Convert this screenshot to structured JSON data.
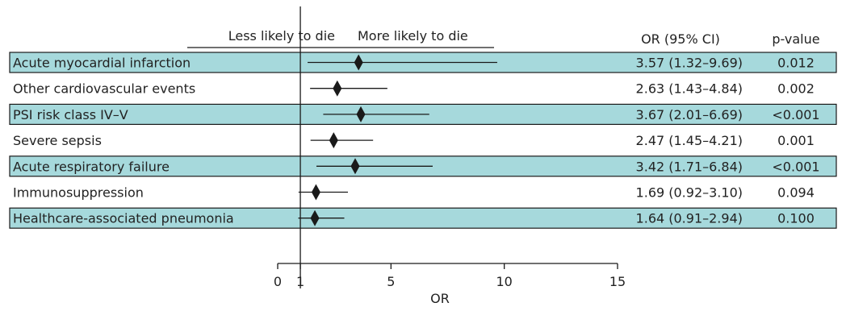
{
  "chart_data": {
    "type": "forest",
    "xlabel": "OR",
    "direction_left": "Less likely to die",
    "direction_right": "More likely to die",
    "col_or_header": "OR (95% CI)",
    "col_p_header": "p-value",
    "xlim": [
      0,
      15
    ],
    "reference_line": 1,
    "xticks": [
      0,
      1,
      5,
      10,
      15
    ],
    "xtick_labels": [
      "0",
      "1",
      "5",
      "10",
      "15"
    ],
    "rows": [
      {
        "label": "Acute myocardial infarction",
        "or": 3.57,
        "ci_low": 1.32,
        "ci_high": 9.69,
        "or_text": "3.57 (1.32–9.69)",
        "p": "0.012",
        "shaded": true
      },
      {
        "label": "Other cardiovascular events",
        "or": 2.63,
        "ci_low": 1.43,
        "ci_high": 4.84,
        "or_text": "2.63 (1.43–4.84)",
        "p": "0.002",
        "shaded": false
      },
      {
        "label": "PSI risk class IV–V",
        "or": 3.67,
        "ci_low": 2.01,
        "ci_high": 6.69,
        "or_text": "3.67 (2.01–6.69)",
        "p": "<0.001",
        "shaded": true
      },
      {
        "label": "Severe sepsis",
        "or": 2.47,
        "ci_low": 1.45,
        "ci_high": 4.21,
        "or_text": "2.47 (1.45–4.21)",
        "p": "0.001",
        "shaded": false
      },
      {
        "label": "Acute respiratory failure",
        "or": 3.42,
        "ci_low": 1.71,
        "ci_high": 6.84,
        "or_text": "3.42 (1.71–6.84)",
        "p": "<0.001",
        "shaded": true
      },
      {
        "label": "Immunosuppression",
        "or": 1.69,
        "ci_low": 0.92,
        "ci_high": 3.1,
        "or_text": "1.69 (0.92–3.10)",
        "p": "0.094",
        "shaded": false
      },
      {
        "label": "Healthcare-associated pneumonia",
        "or": 1.64,
        "ci_low": 0.91,
        "ci_high": 2.94,
        "or_text": "1.64 (0.91–2.94)",
        "p": "0.100",
        "shaded": true
      }
    ],
    "colors": {
      "band": "#a6d9dc",
      "band_border": "#1a1a1a",
      "mark": "#1a1a1a"
    }
  }
}
